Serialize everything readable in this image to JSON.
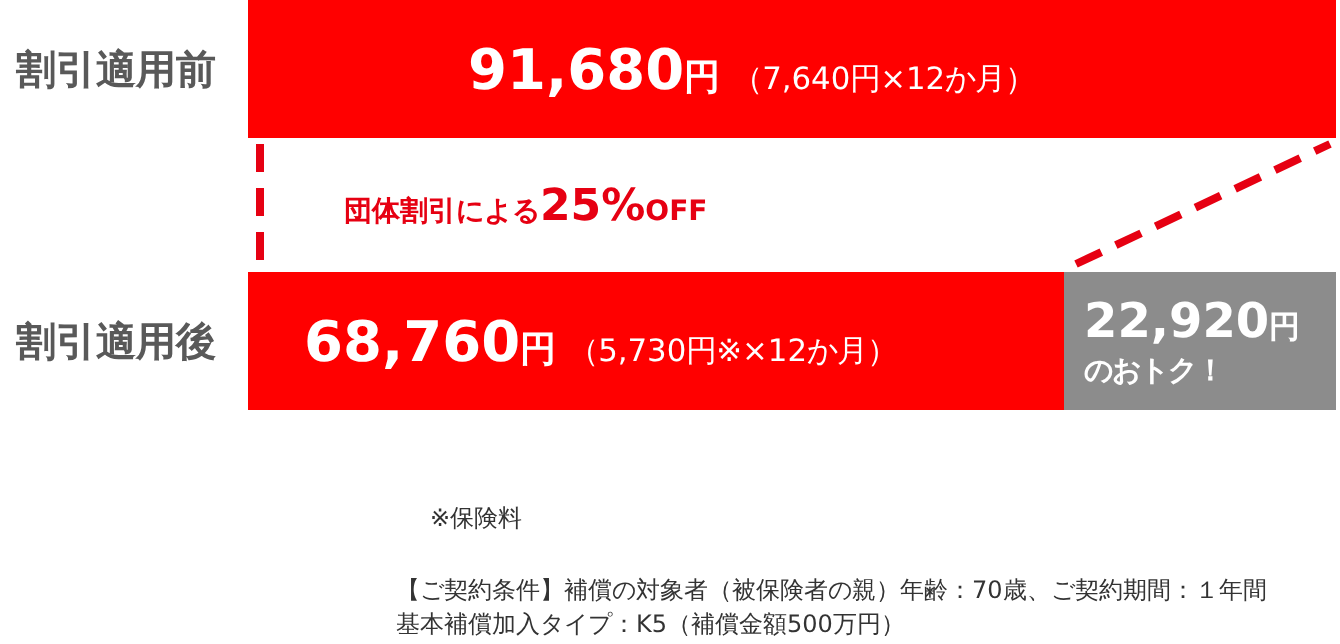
{
  "chart_data": {
    "type": "bar",
    "orientation": "horizontal",
    "stacked": true,
    "categories": [
      "割引適用前",
      "割引適用後"
    ],
    "xlim": [
      0,
      91680
    ],
    "series": [
      {
        "color": "#ff0000",
        "values": [
          91680,
          68760
        ],
        "value_labels": [
          "91,680円（7,640円×12か月）",
          "68,760円（5,730円※×12か月）"
        ]
      },
      {
        "color": "#8c8c8c",
        "values": [
          null,
          22920
        ],
        "value_labels": [
          null,
          "22,920円のおトク！"
        ]
      }
    ],
    "annotations": [
      "団体割引による25%OFF",
      "※保険料",
      "【ご契約条件】補償の対象者（被保険者の親）年齢：70歳、ご契約期間：１年間",
      "基本補償加入タイプ：K5（補償金額500万円）"
    ]
  }
}
